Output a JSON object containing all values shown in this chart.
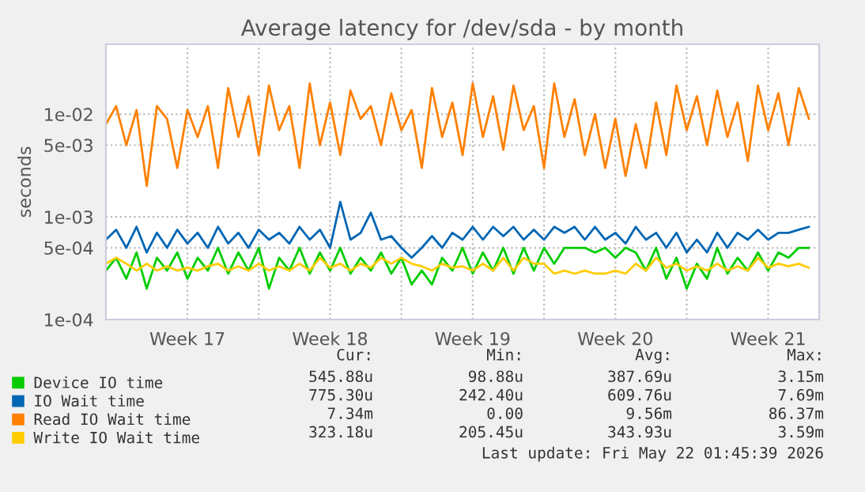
{
  "chart_data": {
    "type": "line",
    "title": "Average latency for /dev/sda - by month",
    "ylabel": "seconds",
    "log": "y",
    "xlim": [
      "2026-04-17T12:00",
      "2026-05-22T12:00"
    ],
    "ylim": [
      0.0001,
      0.048
    ],
    "xticks": [
      {
        "value": "2026-04-21T12:00",
        "label": "Week 17"
      },
      {
        "value": "2026-04-25",
        "label": null
      },
      {
        "value": "2026-04-28T12:00",
        "label": "Week 18"
      },
      {
        "value": "2026-05-02",
        "label": null
      },
      {
        "value": "2026-05-05T12:00",
        "label": "Week 19"
      },
      {
        "value": "2026-05-09",
        "label": null
      },
      {
        "value": "2026-05-12T12:00",
        "label": "Week 20"
      },
      {
        "value": "2026-05-16",
        "label": null
      },
      {
        "value": "2026-05-20",
        "label": "Week 21"
      }
    ],
    "yticks": [
      {
        "value": 0.0001,
        "label": "1e-04"
      },
      {
        "value": 0.0005,
        "label": "5e-04"
      },
      {
        "value": 0.001,
        "label": "1e-03"
      },
      {
        "value": 0.005,
        "label": "5e-03"
      },
      {
        "value": 0.01,
        "label": "1e-02"
      }
    ],
    "grid": true,
    "legend": "bottom left",
    "x": [
      "2026-04-17T12:00",
      "2026-04-18T00:00",
      "2026-04-18T12:00",
      "2026-04-19T00:00",
      "2026-04-19T12:00",
      "2026-04-20T00:00",
      "2026-04-20T12:00",
      "2026-04-21T00:00",
      "2026-04-21T12:00",
      "2026-04-22T00:00",
      "2026-04-22T12:00",
      "2026-04-23T00:00",
      "2026-04-23T12:00",
      "2026-04-24T00:00",
      "2026-04-24T12:00",
      "2026-04-25T00:00",
      "2026-04-25T12:00",
      "2026-04-26T00:00",
      "2026-04-26T12:00",
      "2026-04-27T00:00",
      "2026-04-27T12:00",
      "2026-04-28T00:00",
      "2026-04-28T12:00",
      "2026-04-29T00:00",
      "2026-04-29T12:00",
      "2026-04-30T00:00",
      "2026-04-30T12:00",
      "2026-05-01T00:00",
      "2026-05-01T12:00",
      "2026-05-02T00:00",
      "2026-05-02T12:00",
      "2026-05-03T00:00",
      "2026-05-03T12:00",
      "2026-05-04T00:00",
      "2026-05-04T12:00",
      "2026-05-05T00:00",
      "2026-05-05T12:00",
      "2026-05-06T00:00",
      "2026-05-06T12:00",
      "2026-05-07T00:00",
      "2026-05-07T12:00",
      "2026-05-08T00:00",
      "2026-05-08T12:00",
      "2026-05-09T00:00",
      "2026-05-09T12:00",
      "2026-05-10T00:00",
      "2026-05-10T12:00",
      "2026-05-11T00:00",
      "2026-05-11T12:00",
      "2026-05-12T00:00",
      "2026-05-12T12:00",
      "2026-05-13T00:00",
      "2026-05-13T12:00",
      "2026-05-14T00:00",
      "2026-05-14T12:00",
      "2026-05-15T00:00",
      "2026-05-15T12:00",
      "2026-05-16T00:00",
      "2026-05-16T12:00",
      "2026-05-17T00:00",
      "2026-05-17T12:00",
      "2026-05-18T00:00",
      "2026-05-18T12:00",
      "2026-05-19T00:00",
      "2026-05-19T12:00",
      "2026-05-20T00:00",
      "2026-05-20T12:00",
      "2026-05-21T00:00",
      "2026-05-21T12:00",
      "2026-05-22T00:00"
    ],
    "series": [
      {
        "name": "Device IO time",
        "color": "#00cc00",
        "values": [
          0.0003,
          0.0004,
          0.00025,
          0.00045,
          0.0002,
          0.0004,
          0.0003,
          0.00045,
          0.00025,
          0.0004,
          0.0003,
          0.0005,
          0.00028,
          0.00045,
          0.0003,
          0.0005,
          0.0002,
          0.0004,
          0.0003,
          0.0005,
          0.00028,
          0.00045,
          0.0003,
          0.0005,
          0.00028,
          0.0004,
          0.0003,
          0.00045,
          0.00028,
          0.0004,
          0.00022,
          0.0003,
          0.00022,
          0.0004,
          0.0003,
          0.0005,
          0.00028,
          0.00045,
          0.0003,
          0.0005,
          0.00028,
          0.0005,
          0.0003,
          0.0005,
          0.00035,
          0.0005,
          0.0005,
          0.0005,
          0.00045,
          0.0005,
          0.0004,
          0.0005,
          0.00045,
          0.0003,
          0.0005,
          0.00025,
          0.0004,
          0.0002,
          0.00035,
          0.00025,
          0.0005,
          0.00028,
          0.0004,
          0.0003,
          0.00045,
          0.0003,
          0.00045,
          0.0004,
          0.0005,
          0.0005
        ]
      },
      {
        "name": "IO Wait time",
        "color": "#0066b3",
        "values": [
          0.0006,
          0.00075,
          0.0005,
          0.0008,
          0.00045,
          0.0007,
          0.0005,
          0.00075,
          0.00055,
          0.0007,
          0.0005,
          0.0008,
          0.00055,
          0.0007,
          0.0005,
          0.00075,
          0.0006,
          0.0007,
          0.00055,
          0.0008,
          0.0006,
          0.00075,
          0.0005,
          0.0014,
          0.0006,
          0.0007,
          0.0011,
          0.0006,
          0.00065,
          0.0005,
          0.0004,
          0.0005,
          0.00065,
          0.0005,
          0.0007,
          0.0006,
          0.0008,
          0.0006,
          0.0008,
          0.00065,
          0.0008,
          0.0006,
          0.00075,
          0.0006,
          0.0008,
          0.0007,
          0.0008,
          0.0006,
          0.0008,
          0.0006,
          0.0007,
          0.00055,
          0.0008,
          0.0006,
          0.0007,
          0.0005,
          0.0007,
          0.00045,
          0.0006,
          0.00045,
          0.0007,
          0.0005,
          0.0007,
          0.0006,
          0.00075,
          0.0006,
          0.0007,
          0.0007,
          0.00075,
          0.0008
        ]
      },
      {
        "name": "Read IO Wait time",
        "color": "#ff8000",
        "values": [
          0.008,
          0.012,
          0.005,
          0.011,
          0.002,
          0.012,
          0.009,
          0.003,
          0.011,
          0.006,
          0.012,
          0.003,
          0.018,
          0.006,
          0.015,
          0.004,
          0.019,
          0.007,
          0.012,
          0.003,
          0.02,
          0.005,
          0.013,
          0.004,
          0.017,
          0.009,
          0.012,
          0.005,
          0.016,
          0.007,
          0.011,
          0.003,
          0.018,
          0.006,
          0.013,
          0.004,
          0.02,
          0.006,
          0.015,
          0.0045,
          0.019,
          0.007,
          0.012,
          0.003,
          0.02,
          0.006,
          0.014,
          0.004,
          0.01,
          0.003,
          0.009,
          0.0025,
          0.008,
          0.003,
          0.013,
          0.004,
          0.019,
          0.007,
          0.015,
          0.005,
          0.017,
          0.006,
          0.013,
          0.0035,
          0.019,
          0.007,
          0.016,
          0.005,
          0.018,
          0.009
        ]
      },
      {
        "name": "Write IO Wait time",
        "color": "#ffcc00",
        "values": [
          0.00035,
          0.0004,
          0.00035,
          0.0003,
          0.00035,
          0.0003,
          0.00033,
          0.0003,
          0.00032,
          0.0003,
          0.00033,
          0.00035,
          0.0003,
          0.00033,
          0.0003,
          0.00035,
          0.0003,
          0.00033,
          0.0003,
          0.00035,
          0.0003,
          0.0004,
          0.00032,
          0.00035,
          0.0003,
          0.00035,
          0.00032,
          0.0004,
          0.00035,
          0.0004,
          0.00035,
          0.00033,
          0.0003,
          0.00035,
          0.00032,
          0.00033,
          0.0003,
          0.00035,
          0.0003,
          0.0004,
          0.0003,
          0.0004,
          0.00035,
          0.00035,
          0.00028,
          0.0003,
          0.00028,
          0.0003,
          0.00028,
          0.00028,
          0.0003,
          0.00028,
          0.00035,
          0.0003,
          0.0004,
          0.00032,
          0.00035,
          0.0003,
          0.00033,
          0.0003,
          0.00035,
          0.0003,
          0.00033,
          0.0003,
          0.0004,
          0.00032,
          0.00035,
          0.00033,
          0.00035,
          0.00032
        ]
      }
    ],
    "annotations": [
      "Cur:",
      "Min:",
      "Avg:",
      "Max:",
      "545.88u",
      "98.88u",
      "387.69u",
      "3.15m",
      "775.30u",
      "242.40u",
      "609.76u",
      "7.69m",
      "7.34m",
      "0.00",
      "9.56m",
      "86.37m",
      "323.18u",
      "205.45u",
      "343.93u",
      "3.59m",
      "Last update: Fri May 22 01:45:39 2026"
    ]
  }
}
